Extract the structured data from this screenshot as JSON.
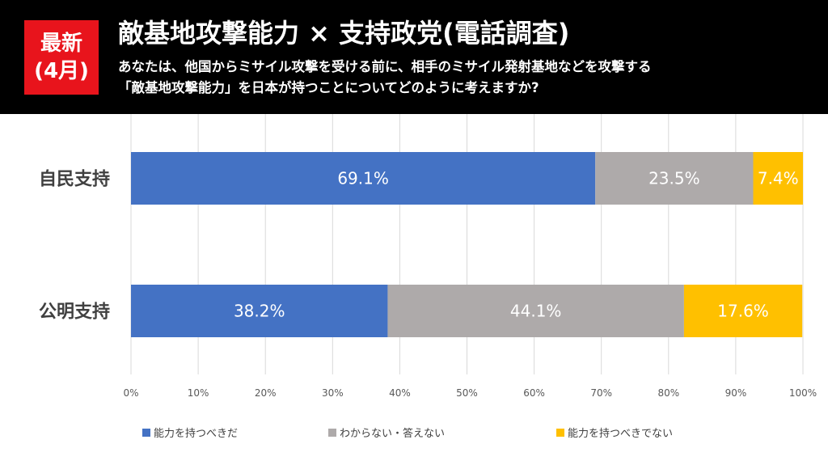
{
  "header": {
    "badge_line1": "最新",
    "badge_line2": "(4月)",
    "title": "敵基地攻撃能力 × 支持政党(電話調査)",
    "question_line1": "あなたは、他国からミサイル攻撃を受ける前に、相手のミサイル発射基地などを攻撃する",
    "question_line2": "「敵基地攻撃能力」を日本が持つことについてどのように考えますか?"
  },
  "colors": {
    "series1": "#4472c4",
    "series2": "#aeaaaa",
    "series3": "#ffc000"
  },
  "chart_data": {
    "type": "bar",
    "orientation": "horizontal",
    "stacked": true,
    "categories": [
      "自民支持",
      "公明支持"
    ],
    "series": [
      {
        "name": "能力を持つべきだ",
        "values": [
          69.1,
          38.2
        ],
        "labels": [
          "69.1%",
          "38.2%"
        ]
      },
      {
        "name": "わからない・答えない",
        "values": [
          23.5,
          44.1
        ],
        "labels": [
          "23.5%",
          "44.1%"
        ]
      },
      {
        "name": "能力を持つべきでない",
        "values": [
          7.4,
          17.6
        ],
        "labels": [
          "7.4%",
          "17.6%"
        ]
      }
    ],
    "xlim": [
      0,
      100
    ],
    "xticks": [
      "0%",
      "10%",
      "20%",
      "30%",
      "40%",
      "50%",
      "60%",
      "70%",
      "80%",
      "90%",
      "100%"
    ],
    "grid": true,
    "legend": "bottom"
  }
}
